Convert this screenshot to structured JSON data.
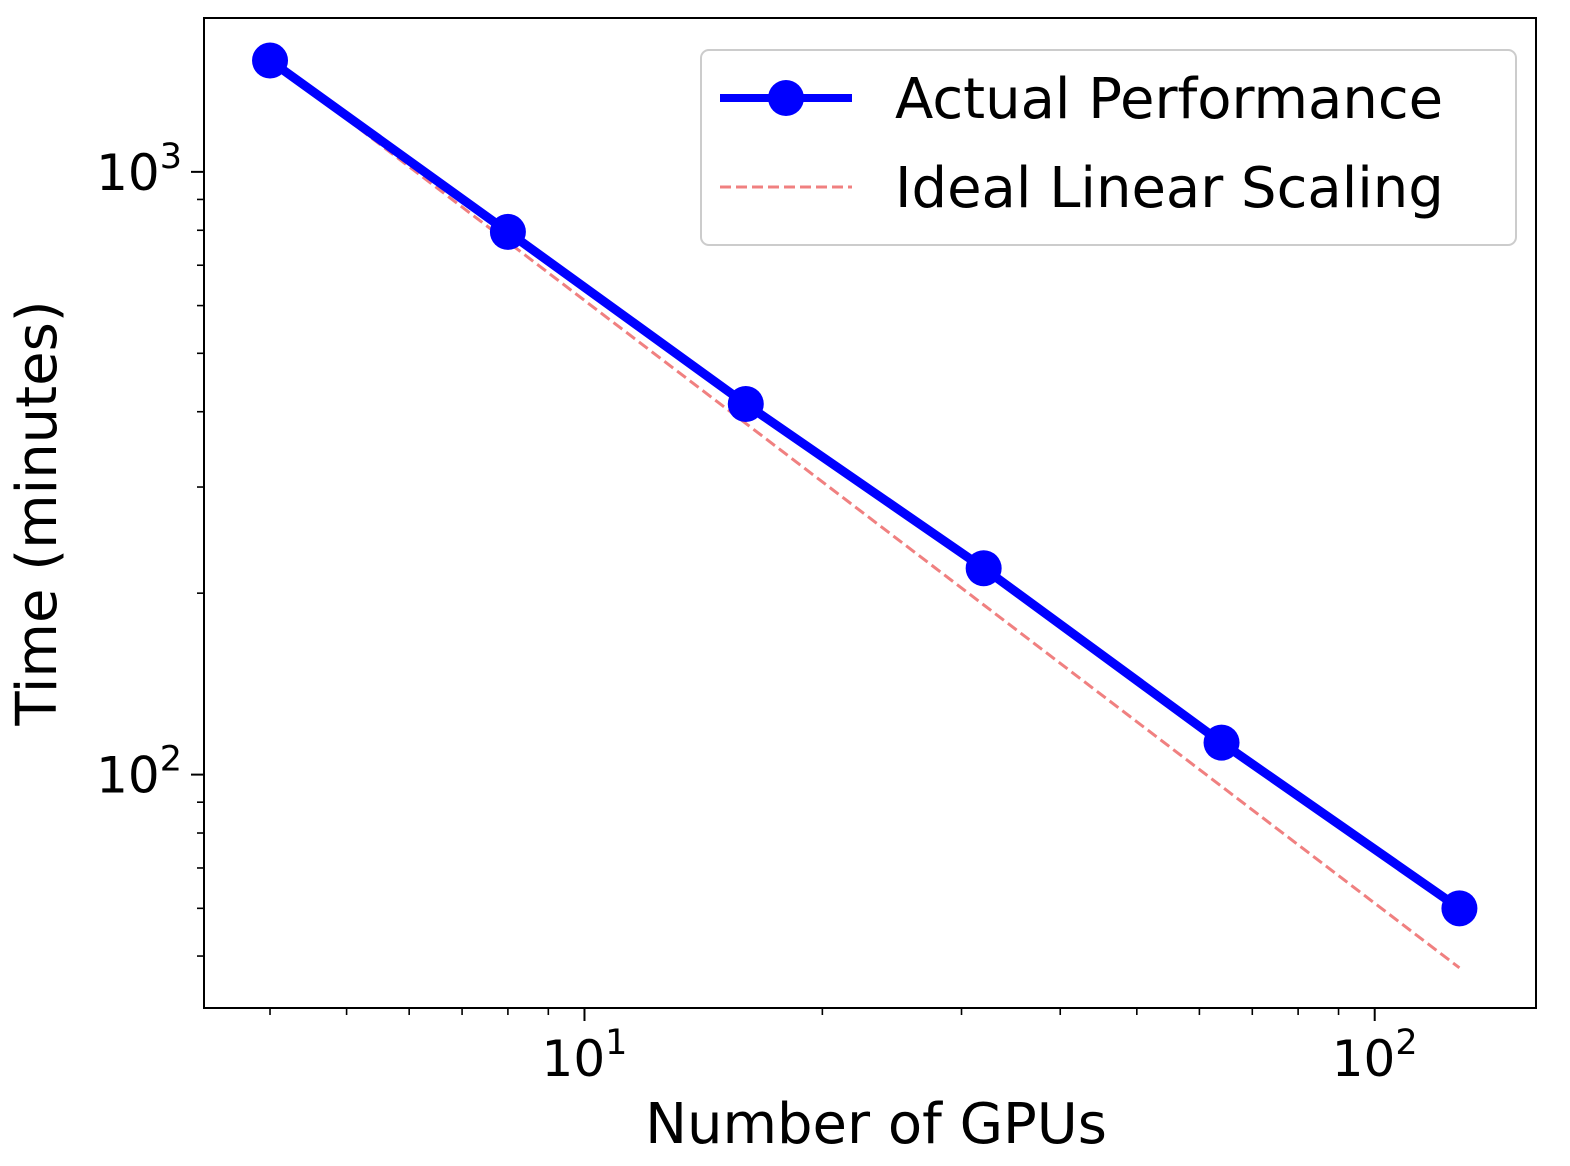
{
  "chart_data": {
    "type": "line",
    "xlabel": "Number of GPUs",
    "ylabel": "Time (minutes)",
    "xscale": "log",
    "yscale": "log",
    "xlim": [
      3.3,
      160
    ],
    "ylim": [
      41,
      1800
    ],
    "grid": false,
    "legend_position": "upper right",
    "x_ticks": [
      {
        "value": 10,
        "base": "10",
        "exp": "1"
      },
      {
        "value": 100,
        "base": "10",
        "exp": "2"
      }
    ],
    "y_ticks": [
      {
        "value": 100,
        "base": "10",
        "exp": "2"
      },
      {
        "value": 1000,
        "base": "10",
        "exp": "3"
      }
    ],
    "x": [
      4,
      8,
      16,
      32,
      64,
      128
    ],
    "series": [
      {
        "name": "Actual Performance",
        "values": [
          1530,
          795,
          412,
          220,
          113,
          60
        ],
        "color": "#0000ff",
        "style": "solid",
        "marker": "circle"
      },
      {
        "name": "Ideal Linear Scaling",
        "values": [
          1530,
          765,
          382.5,
          191.25,
          95.6,
          47.8
        ],
        "color": "#f08080",
        "style": "dashed",
        "marker": "none"
      }
    ]
  }
}
